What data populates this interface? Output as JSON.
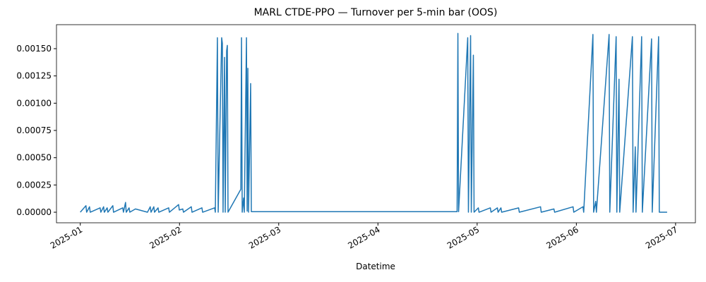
{
  "chart_data": {
    "type": "line",
    "title": "MARL CTDE-PPO — Turnover per 5-min bar (OOS)",
    "x_label": "Datetime",
    "xlim": [
      0.76,
      7.2
    ],
    "xticks": [
      {
        "value": 1,
        "label": "2025-01"
      },
      {
        "value": 2,
        "label": "2025-02"
      },
      {
        "value": 3,
        "label": "2025-03"
      },
      {
        "value": 4,
        "label": "2025-04"
      },
      {
        "value": 5,
        "label": "2025-05"
      },
      {
        "value": 6,
        "label": "2025-06"
      },
      {
        "value": 7,
        "label": "2025-07"
      }
    ],
    "ylim": [
      -9.68e-05,
      0.00172
    ],
    "yticks": [
      {
        "value": 0,
        "label": "0.00000"
      },
      {
        "value": 0.00025,
        "label": "0.00025"
      },
      {
        "value": 0.0005,
        "label": "0.00050"
      },
      {
        "value": 0.00075,
        "label": "0.00075"
      },
      {
        "value": 0.001,
        "label": "0.00100"
      },
      {
        "value": 0.00125,
        "label": "0.00125"
      },
      {
        "value": 0.0015,
        "label": "0.00150"
      }
    ],
    "series": [
      {
        "name": "Turnover",
        "color": "#1f77b4",
        "x": [
          1.0,
          1.057,
          1.064,
          1.093,
          1.1,
          1.2,
          1.207,
          1.235,
          1.242,
          1.271,
          1.278,
          1.328,
          1.335,
          1.428,
          1.435,
          1.456,
          1.463,
          1.492,
          1.499,
          1.556,
          1.677,
          1.705,
          1.713,
          1.741,
          1.748,
          1.784,
          1.791,
          1.891,
          1.898,
          1.991,
          1.998,
          2.033,
          2.04,
          2.119,
          2.126,
          2.226,
          2.233,
          2.354,
          2.361,
          2.382,
          2.39,
          2.425,
          2.432,
          2.439,
          2.454,
          2.461,
          2.475,
          2.482,
          2.489,
          2.618,
          2.625,
          2.632,
          2.646,
          2.653,
          2.675,
          2.682,
          2.689,
          2.696,
          2.717,
          2.724,
          4.798,
          4.806,
          4.813,
          4.905,
          4.912,
          4.934,
          4.941,
          4.962,
          4.969,
          5.012,
          5.019,
          5.133,
          5.14,
          5.204,
          5.211,
          5.24,
          5.247,
          5.418,
          5.425,
          5.639,
          5.646,
          5.774,
          5.781,
          5.967,
          5.974,
          6.067,
          6.074,
          6.167,
          6.174,
          6.195,
          6.202,
          6.33,
          6.337,
          6.401,
          6.408,
          6.43,
          6.437,
          6.565,
          6.572,
          6.594,
          6.601,
          6.658,
          6.665,
          6.758,
          6.765,
          6.829,
          6.836,
          6.915
        ],
        "values": [
          0,
          6e-05,
          0,
          5e-05,
          0,
          4e-05,
          0,
          5e-05,
          0,
          4e-05,
          0,
          6e-05,
          0,
          4e-05,
          0,
          9e-05,
          0,
          4e-05,
          0,
          3e-05,
          0,
          5e-05,
          0,
          5e-05,
          0,
          4e-05,
          0,
          4e-05,
          0,
          7e-05,
          2e-05,
          3e-05,
          0,
          5e-05,
          0,
          4e-05,
          0,
          4e-05,
          0,
          0.0016,
          0,
          0.0016,
          0.00155,
          0,
          0.00142,
          0,
          0.00148,
          0.00153,
          0,
          0.00021,
          0.0016,
          0,
          0.00013,
          0,
          0.0016,
          1e-05,
          0.00132,
          0,
          0.00118,
          5e-06,
          5e-06,
          0.00164,
          5e-06,
          0.0016,
          0,
          0.00162,
          0,
          0.00144,
          0,
          4e-05,
          0,
          4e-05,
          0,
          4e-05,
          0,
          4e-05,
          0,
          4e-05,
          0,
          5e-05,
          0,
          3e-05,
          0,
          5e-05,
          0,
          5e-05,
          0,
          0.00163,
          0,
          0.0001,
          0,
          0.00163,
          0,
          0.00161,
          0,
          0.00122,
          0,
          0.00161,
          0,
          0.0006,
          0,
          0.00161,
          0,
          0.00159,
          0,
          0.00161,
          0,
          0
        ]
      }
    ]
  }
}
